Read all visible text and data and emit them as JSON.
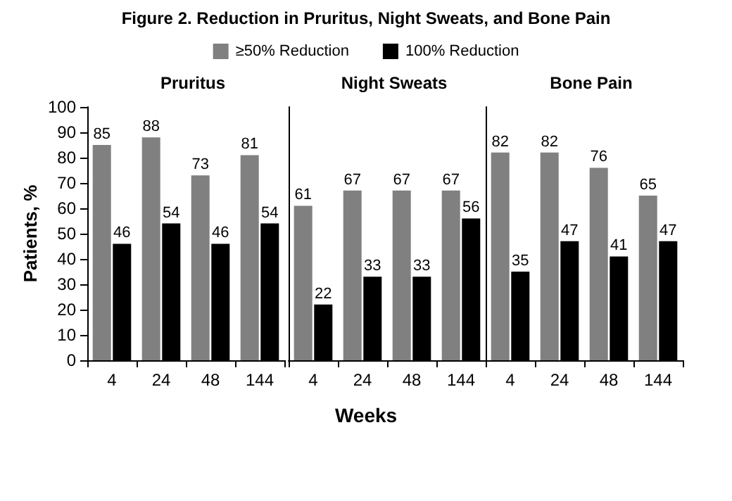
{
  "chart_data": [
    {
      "type": "bar",
      "title": "Figure 2. Reduction in Pruritus, Night Sweats, and Bone Pain",
      "subtitle": "Pruritus",
      "ylabel": "Patients, %",
      "categories": [
        "4",
        "24",
        "48",
        "144"
      ],
      "series": [
        {
          "name": "≥50% Reduction",
          "color": "#808080",
          "values": [
            85,
            88,
            73,
            81
          ]
        },
        {
          "name": "100% Reduction",
          "color": "#000000",
          "values": [
            46,
            54,
            46,
            54
          ]
        }
      ],
      "ylim": [
        0,
        100
      ],
      "yticks": [
        0,
        10,
        20,
        30,
        40,
        50,
        60,
        70,
        80,
        90,
        100
      ],
      "grid": false,
      "legend": "top",
      "data_labels": true
    },
    {
      "type": "bar",
      "subtitle": "Night Sweats",
      "xlabel": "Weeks",
      "categories": [
        "4",
        "24",
        "48",
        "144"
      ],
      "series": [
        {
          "color": "#808080",
          "values": [
            61,
            67,
            67,
            67
          ]
        },
        {
          "color": "#000000",
          "values": [
            22,
            33,
            33,
            56
          ]
        }
      ],
      "ylim": [
        0,
        100
      ],
      "yticks": [
        0,
        10,
        20,
        30,
        40,
        50,
        60,
        70,
        80,
        90,
        100
      ],
      "grid": false,
      "tick_labels": "x",
      "data_labels": true
    },
    {
      "type": "bar",
      "subtitle": "Bone Pain",
      "categories": [
        "4",
        "24",
        "48",
        "144"
      ],
      "series": [
        {
          "color": "#808080",
          "values": [
            82,
            82,
            76,
            65
          ]
        },
        {
          "color": "#000000",
          "values": [
            35,
            47,
            41,
            47
          ]
        }
      ],
      "ylim": [
        0,
        100
      ],
      "yticks": [
        0,
        10,
        20,
        30,
        40,
        50,
        60,
        70,
        80,
        90,
        100
      ],
      "grid": false,
      "tick_labels": "x",
      "data_labels": true
    }
  ]
}
